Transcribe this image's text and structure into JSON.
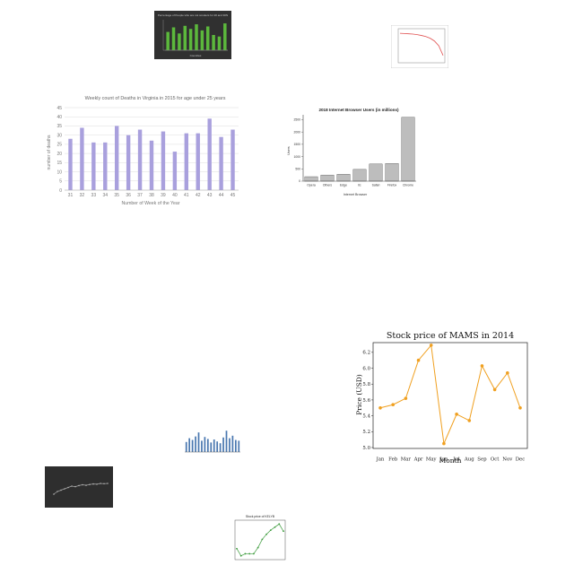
{
  "chart_data": [
    {
      "id": "green-bars",
      "type": "bar",
      "title": "Percentage of People who are not smokers for 20 and 30N",
      "xlabel": "Countries",
      "ylabel": "",
      "categories": [
        "",
        "",
        "",
        "",
        "",
        "",
        "",
        "",
        "",
        "",
        ""
      ],
      "values": [
        60,
        75,
        55,
        80,
        70,
        85,
        65,
        78,
        50,
        45,
        88
      ],
      "ylim": [
        0,
        100
      ],
      "colors": {
        "background": "#303030",
        "bar": "#5cb83c",
        "text": "#cccccc"
      }
    },
    {
      "id": "red-curve",
      "type": "line",
      "title": "",
      "xlabel": "",
      "ylabel": "",
      "x": [
        0,
        1,
        2,
        3,
        4,
        5,
        6,
        7,
        8,
        9,
        10
      ],
      "values": [
        100,
        99,
        98,
        97,
        95,
        92,
        88,
        82,
        72,
        55,
        20
      ],
      "ylim": [
        0,
        110
      ],
      "colors": {
        "line": "#e05050",
        "frame": "#999999"
      }
    },
    {
      "id": "virginia-deaths",
      "type": "bar",
      "title": "Weekly count of Deaths in Virginia in 2015 for age under 25 years",
      "xlabel": "Number of Week of the Year",
      "ylabel": "number of deaths",
      "categories": [
        "31",
        "32",
        "33",
        "34",
        "35",
        "36",
        "37",
        "38",
        "39",
        "40",
        "41",
        "42",
        "43",
        "44",
        "45"
      ],
      "values": [
        28,
        34,
        26,
        26,
        35,
        30,
        33,
        27,
        32,
        21,
        31,
        31,
        39,
        29,
        33
      ],
      "yticks": [
        "0",
        "5",
        "10",
        "15",
        "20",
        "25",
        "30",
        "35",
        "40",
        "45"
      ],
      "ylim": [
        0,
        45
      ],
      "grid": true,
      "colors": {
        "bar": "#a9a0dd",
        "text": "#777777"
      }
    },
    {
      "id": "browser-users",
      "type": "bar",
      "title": "2018 Internet Browser Users (in millions)",
      "xlabel": "Internet Browser",
      "ylabel": "Users",
      "categories": [
        "Opera",
        "Others",
        "Edge",
        "IE",
        "Safari",
        "Firefox",
        "Chrome"
      ],
      "values": [
        182,
        250,
        280,
        480,
        700,
        720,
        2600
      ],
      "yticks": [
        "0",
        "500",
        "1000",
        "1500",
        "2000",
        "2500"
      ],
      "ylim": [
        0,
        2700
      ],
      "colors": {
        "bar": "#bdbdbd",
        "edge": "#555555"
      }
    },
    {
      "id": "mams-stock",
      "type": "line",
      "title": "Stock price of MAMS in 2014",
      "xlabel": "Month",
      "ylabel": "Price (USD)",
      "categories": [
        "Jan",
        "Feb",
        "Mar",
        "Apr",
        "May",
        "Jun",
        "Jul",
        "Aug",
        "Sep",
        "Oct",
        "Nov",
        "Dec"
      ],
      "values": [
        5.5,
        5.54,
        5.62,
        6.1,
        6.29,
        5.05,
        5.42,
        5.34,
        6.03,
        5.73,
        5.94,
        5.5
      ],
      "yticks": [
        "5.0",
        "5.2",
        "5.4",
        "5.6",
        "5.8",
        "6.0",
        "6.2"
      ],
      "ylim": [
        5.0,
        6.3
      ],
      "colors": {
        "line": "#f0a020"
      }
    },
    {
      "id": "blue-bars",
      "type": "bar",
      "title": "",
      "xlabel": "",
      "ylabel": "",
      "categories": [
        "",
        "",
        "",
        "",
        "",
        "",
        "",
        "",
        "",
        "",
        "",
        "",
        "",
        "",
        "",
        "",
        "",
        ""
      ],
      "values": [
        40,
        55,
        48,
        62,
        78,
        45,
        60,
        52,
        38,
        50,
        42,
        35,
        58,
        85,
        55,
        65,
        48,
        45
      ],
      "ylim": [
        0,
        100
      ],
      "colors": {
        "bar": "#4a78b0"
      }
    },
    {
      "id": "dark-line",
      "type": "line",
      "title": "",
      "xlabel": "",
      "ylabel": "",
      "x": [
        0,
        1,
        2,
        3,
        4,
        5,
        6,
        7,
        8,
        9,
        10,
        11,
        12,
        13,
        14,
        15
      ],
      "values": [
        30,
        40,
        45,
        50,
        55,
        60,
        58,
        62,
        65,
        63,
        66,
        68,
        67,
        70,
        69,
        70
      ],
      "ylim": [
        0,
        100
      ],
      "colors": {
        "background": "#2e2e2e",
        "line": "#aaaaaa"
      }
    },
    {
      "id": "green-stock",
      "type": "line",
      "title": "Stock price of KELYB",
      "xlabel": "",
      "ylabel": "",
      "x": [
        0,
        1,
        2,
        3,
        4,
        5,
        6,
        7,
        8,
        9,
        10,
        11
      ],
      "values": [
        3.9,
        3.2,
        3.4,
        3.4,
        3.4,
        4.0,
        4.8,
        5.3,
        5.7,
        6.0,
        6.3,
        5.6
      ],
      "ylim": [
        3.0,
        6.5
      ],
      "colors": {
        "line": "#3a9a3a"
      }
    }
  ]
}
